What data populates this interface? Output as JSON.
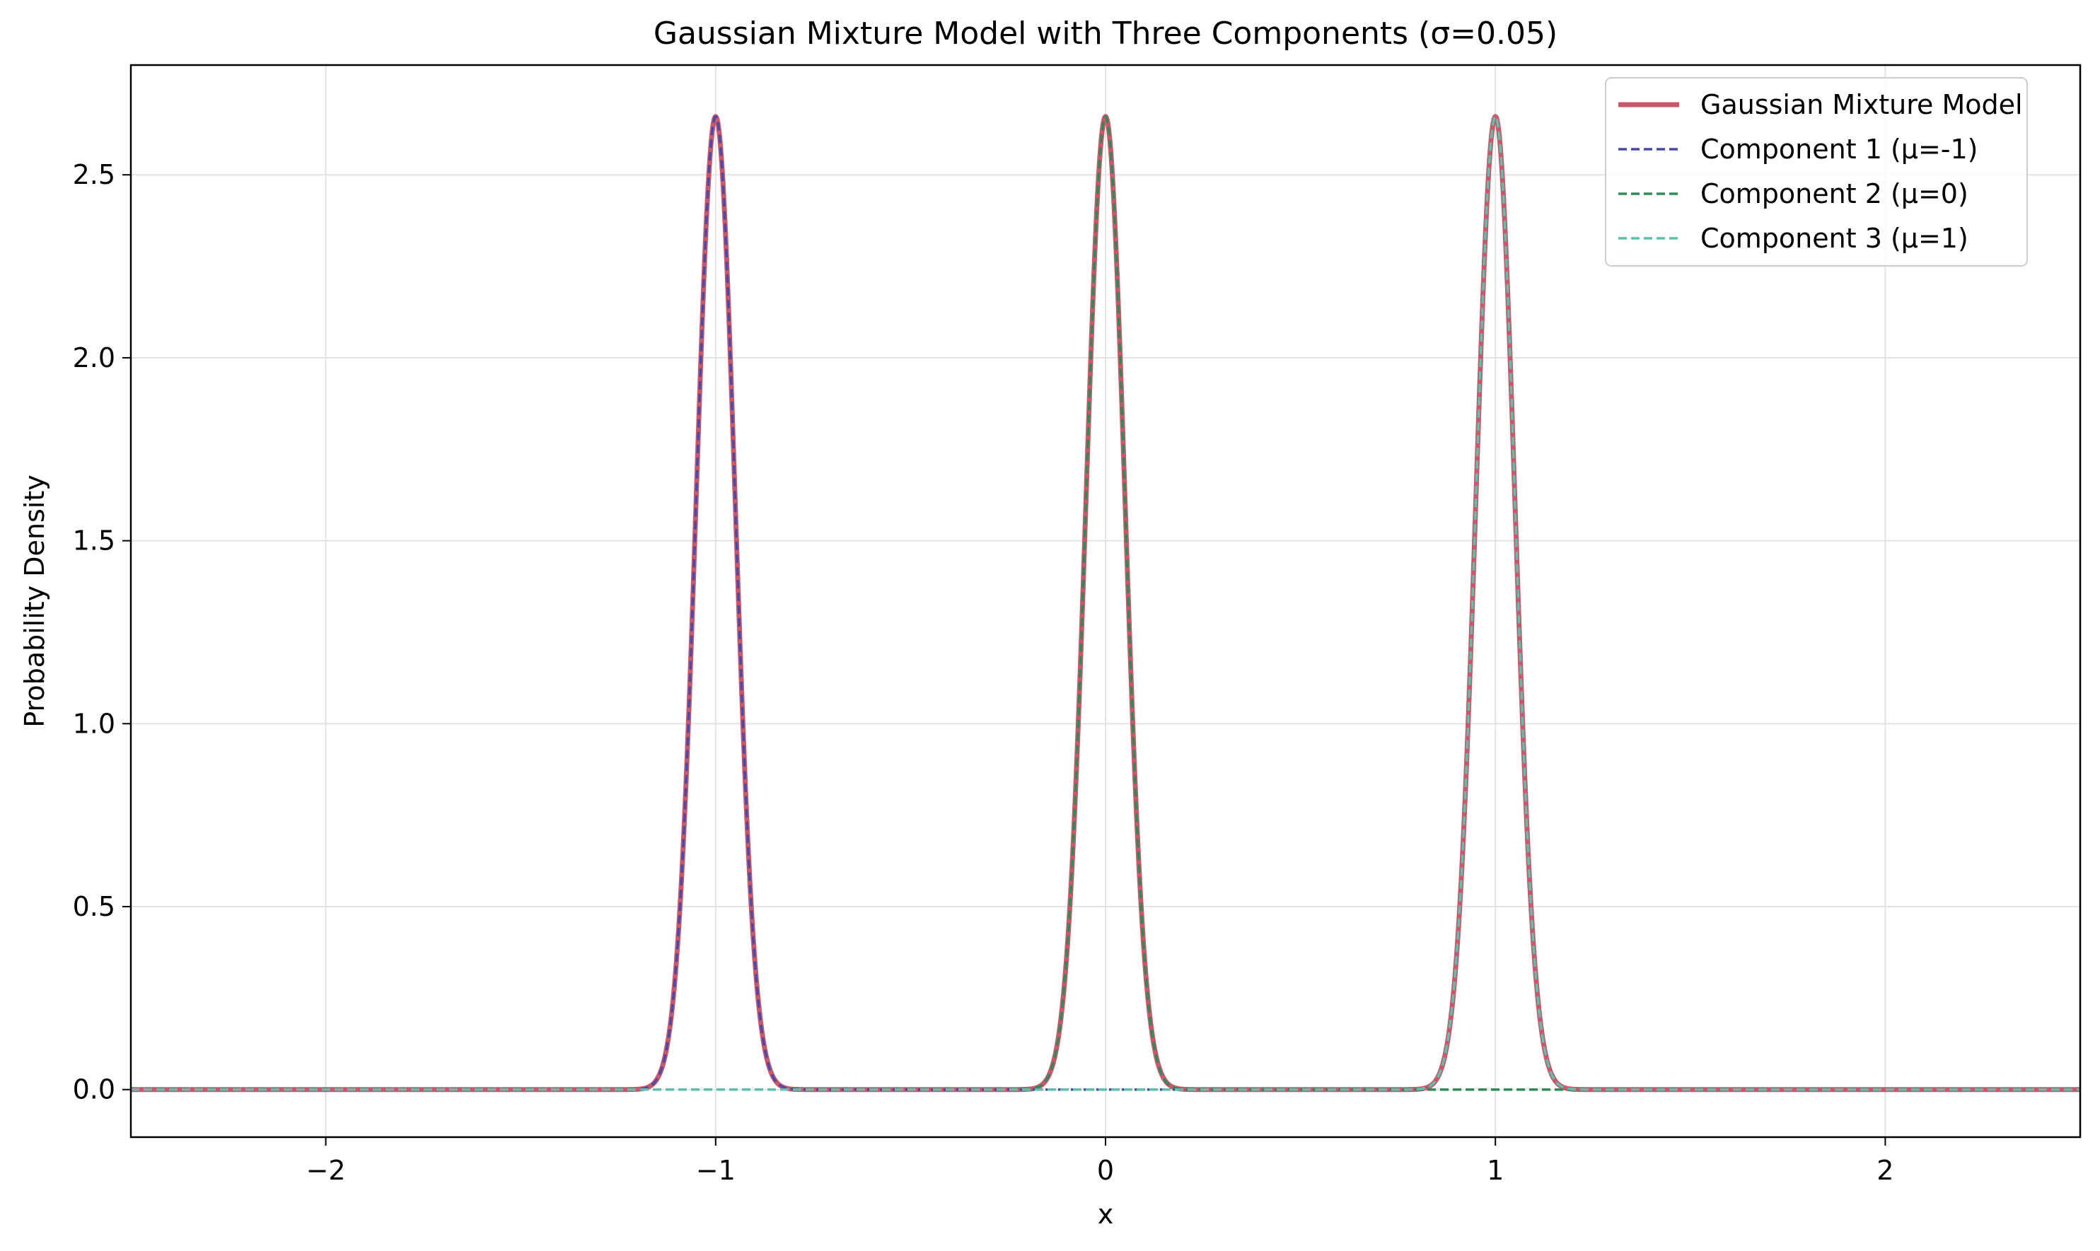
{
  "chart_data": {
    "type": "line",
    "title": "Gaussian Mixture Model with Three Components (σ=0.05)",
    "xlabel": "x",
    "ylabel": "Probability Density",
    "xlim": [
      -2.5,
      2.5
    ],
    "ylim": [
      -0.13,
      2.8
    ],
    "xticks": [
      -2,
      -1,
      0,
      1,
      2
    ],
    "xtick_labels": [
      "−2",
      "−1",
      "0",
      "1",
      "2"
    ],
    "yticks": [
      0.0,
      0.5,
      1.0,
      1.5,
      2.0,
      2.5
    ],
    "ytick_labels": [
      "0.0",
      "0.5",
      "1.0",
      "1.5",
      "2.0",
      "2.5"
    ],
    "grid": true,
    "legend_position": "top-right",
    "sigma": 0.05,
    "series": [
      {
        "name": "Gaussian Mixture Model",
        "kind": "mixture",
        "means": [
          -1,
          0,
          1
        ],
        "weight": 0.3333,
        "color": "#c9586b",
        "style": "solid"
      },
      {
        "name": "Component 1 (μ=-1)",
        "kind": "component",
        "mean": -1,
        "weight": 0.3333,
        "color": "#4a4aa8",
        "style": "dashed"
      },
      {
        "name": "Component 2 (μ=0)",
        "kind": "component",
        "mean": 0,
        "weight": 0.3333,
        "color": "#2e8b57",
        "style": "dashed"
      },
      {
        "name": "Component 3 (μ=1)",
        "kind": "component",
        "mean": 1,
        "weight": 0.3333,
        "color": "#5fbfad",
        "style": "dashed"
      }
    ]
  }
}
